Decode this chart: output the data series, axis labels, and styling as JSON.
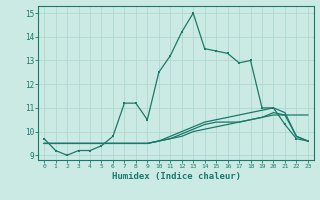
{
  "xlabel": "Humidex (Indice chaleur)",
  "x": [
    0,
    1,
    2,
    3,
    4,
    5,
    6,
    7,
    8,
    9,
    10,
    11,
    12,
    13,
    14,
    15,
    16,
    17,
    18,
    19,
    20,
    21,
    22,
    23
  ],
  "line1": [
    9.7,
    9.2,
    9.0,
    9.2,
    9.2,
    9.4,
    9.8,
    11.2,
    11.2,
    10.5,
    12.5,
    13.2,
    14.2,
    15.0,
    13.5,
    13.4,
    13.3,
    12.9,
    13.0,
    11.0,
    11.0,
    10.3,
    9.7,
    9.6
  ],
  "line2": [
    9.5,
    9.5,
    9.5,
    9.5,
    9.5,
    9.5,
    9.5,
    9.5,
    9.5,
    9.5,
    9.6,
    9.7,
    9.8,
    10.0,
    10.1,
    10.2,
    10.3,
    10.4,
    10.5,
    10.6,
    10.7,
    10.7,
    10.7,
    10.7
  ],
  "line3": [
    9.5,
    9.5,
    9.5,
    9.5,
    9.5,
    9.5,
    9.5,
    9.5,
    9.5,
    9.5,
    9.6,
    9.8,
    10.0,
    10.2,
    10.4,
    10.5,
    10.6,
    10.7,
    10.8,
    10.9,
    11.0,
    10.8,
    9.8,
    9.6
  ],
  "line4": [
    9.5,
    9.5,
    9.5,
    9.5,
    9.5,
    9.5,
    9.5,
    9.5,
    9.5,
    9.5,
    9.6,
    9.7,
    9.9,
    10.1,
    10.3,
    10.4,
    10.4,
    10.4,
    10.5,
    10.6,
    10.8,
    10.7,
    9.8,
    9.6
  ],
  "line_color": "#1a7a6a",
  "bg_color": "#cceae4",
  "grid_color": "#aad4cc",
  "ylim": [
    8.8,
    15.3
  ],
  "xlim": [
    -0.5,
    23.5
  ],
  "yticks": [
    9,
    10,
    11,
    12,
    13,
    14,
    15
  ]
}
